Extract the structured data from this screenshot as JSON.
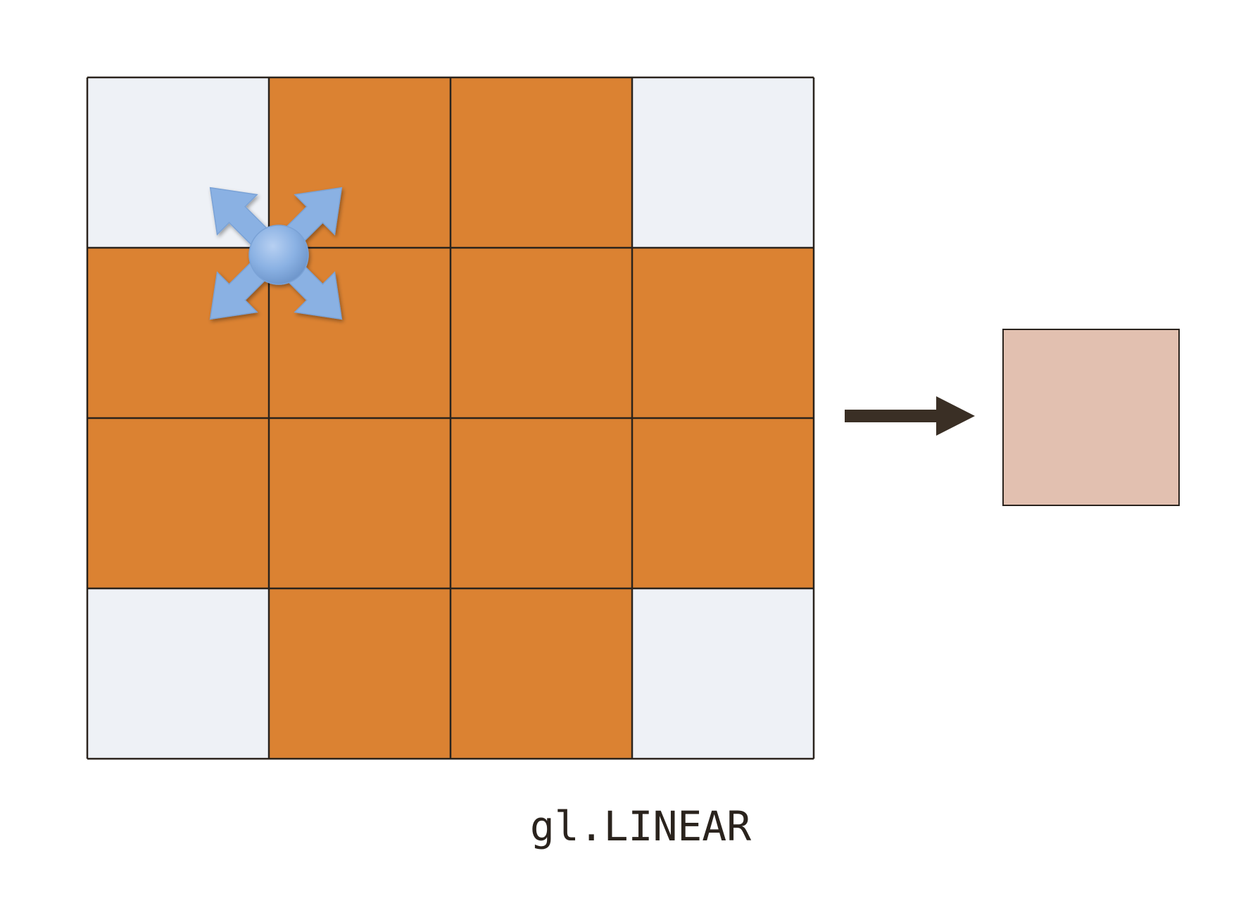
{
  "caption": "gl.LINEAR",
  "grid": {
    "rows": 4,
    "cols": 4,
    "cells": [
      [
        "empty",
        "filled",
        "filled",
        "empty"
      ],
      [
        "filled",
        "filled",
        "filled",
        "filled"
      ],
      [
        "filled",
        "filled",
        "filled",
        "filled"
      ],
      [
        "empty",
        "filled",
        "filled",
        "empty"
      ]
    ]
  },
  "colors": {
    "filled": "#db8232",
    "empty": "#eef1f6",
    "grid_line": "#2a231d",
    "arrow": "#3a2f25",
    "result": "#e2c0b0",
    "sample_marker": "#8ab1e3"
  },
  "icons": {
    "sample_marker": "four-way-arrows-icon",
    "transform_arrow": "right-arrow-icon"
  }
}
